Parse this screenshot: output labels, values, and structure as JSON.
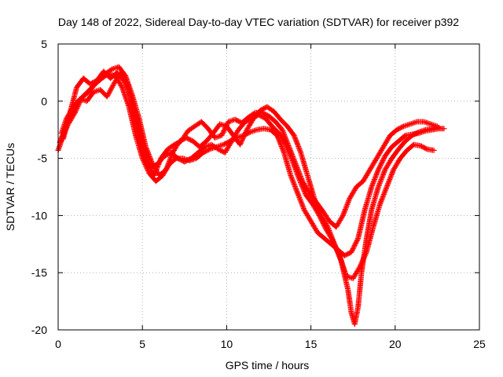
{
  "chart_data": {
    "type": "scatter",
    "title": "Day 148 of 2022, Sidereal Day-to-day VTEC variation (SDTVAR) for receiver p392",
    "xlabel": "GPS time / hours",
    "ylabel": "SDTVAR / TECUs",
    "xlim": [
      0,
      25
    ],
    "ylim": [
      -20,
      5
    ],
    "xticks": [
      0,
      5,
      10,
      15,
      20,
      25
    ],
    "yticks": [
      5,
      0,
      -5,
      -10,
      -15,
      -20
    ],
    "grid": true,
    "marker": "plus",
    "color": "#ff0000",
    "series": [
      {
        "x": [
          0.0,
          0.3,
          0.6,
          1.0,
          1.4,
          1.8,
          2.2,
          2.6,
          3.0,
          3.4,
          3.8,
          4.2,
          4.6,
          5.0,
          5.4,
          5.8,
          6.2,
          6.6,
          7.0,
          7.4,
          7.8,
          8.2,
          8.6,
          9.0,
          9.4,
          9.8,
          10.2,
          10.6,
          11.0,
          11.4,
          11.8,
          12.2,
          12.6,
          13.0,
          13.4,
          13.8,
          14.2,
          14.6,
          15.0,
          15.4,
          15.8,
          16.2,
          16.6,
          17.0,
          17.4,
          17.8,
          18.2,
          18.6,
          19.0,
          19.4,
          19.8,
          20.2,
          20.6,
          21.0,
          21.4,
          21.8,
          22.2,
          22.6,
          22.9
        ],
        "y": [
          -4.3,
          -3.0,
          -2.0,
          -1.0,
          0.3,
          0.8,
          1.5,
          2.0,
          2.4,
          2.2,
          1.2,
          -0.5,
          -3.0,
          -5.0,
          -6.3,
          -7.0,
          -6.5,
          -5.5,
          -5.0,
          -5.0,
          -5.2,
          -5.0,
          -4.5,
          -4.2,
          -4.0,
          -3.8,
          -3.5,
          -3.2,
          -3.0,
          -2.7,
          -2.5,
          -2.4,
          -2.5,
          -3.0,
          -4.5,
          -6.5,
          -8.0,
          -9.5,
          -10.5,
          -11.5,
          -12.0,
          -12.5,
          -13.0,
          -13.5,
          -13.2,
          -12.0,
          -9.5,
          -7.5,
          -6.0,
          -4.8,
          -4.0,
          -3.5,
          -3.0,
          -2.9,
          -2.8,
          -2.6,
          -2.5,
          -2.4,
          -2.4
        ]
      },
      {
        "x": [
          0.1,
          0.4,
          0.8,
          1.2,
          1.6,
          2.0,
          2.4,
          2.8,
          3.2,
          3.6,
          4.0,
          4.4,
          4.8,
          5.2,
          5.6,
          6.0,
          6.4,
          6.8,
          7.2,
          7.6,
          8.0,
          8.4,
          8.8,
          9.2,
          9.6,
          10.0,
          10.4,
          10.8,
          11.2,
          11.6,
          12.0,
          12.4,
          12.8,
          13.2,
          13.6,
          14.0,
          14.4,
          14.8,
          15.2,
          15.6,
          16.0,
          16.4,
          16.8,
          17.2,
          17.4,
          17.6,
          17.8,
          18.0,
          18.3,
          18.6,
          19.0,
          19.4,
          19.8,
          20.2,
          20.6,
          21.0,
          21.4,
          21.8,
          22.2,
          22.6
        ],
        "y": [
          -3.6,
          -2.4,
          -1.2,
          0.0,
          0.6,
          1.2,
          1.8,
          2.4,
          2.8,
          3.0,
          2.2,
          0.5,
          -1.5,
          -4.0,
          -5.5,
          -6.5,
          -6.0,
          -4.5,
          -3.5,
          -3.2,
          -3.5,
          -4.0,
          -3.5,
          -2.8,
          -2.0,
          -2.2,
          -3.0,
          -3.8,
          -2.5,
          -1.5,
          -0.8,
          -0.5,
          -0.9,
          -1.6,
          -2.2,
          -3.0,
          -4.5,
          -6.5,
          -8.5,
          -10.0,
          -11.0,
          -12.5,
          -14.0,
          -16.5,
          -18.5,
          -19.5,
          -18.0,
          -15.0,
          -12.0,
          -9.5,
          -7.5,
          -6.0,
          -5.0,
          -4.2,
          -3.5,
          -3.0,
          -2.7,
          -2.5,
          -2.4,
          -2.3
        ]
      },
      {
        "x": [
          0.2,
          0.5,
          0.9,
          1.3,
          1.7,
          2.1,
          2.5,
          2.9,
          3.3,
          3.7,
          4.1,
          4.5,
          4.9,
          5.3,
          5.7,
          6.1,
          6.5,
          6.9,
          7.3,
          7.7,
          8.1,
          8.5,
          8.9,
          9.3,
          9.7,
          10.1,
          10.5,
          10.9,
          11.3,
          11.7,
          12.1,
          12.5,
          12.9,
          13.3,
          13.7,
          14.1,
          14.5,
          14.9,
          15.3,
          15.7,
          16.1,
          16.5,
          16.9,
          17.3,
          17.7,
          18.1,
          18.5,
          18.9,
          19.3,
          19.7,
          20.1,
          20.5,
          20.9,
          21.3,
          21.7,
          22.1,
          22.5
        ],
        "y": [
          -2.8,
          -1.5,
          -0.5,
          0.2,
          0.0,
          0.8,
          1.0,
          0.4,
          1.5,
          2.5,
          1.5,
          -1.0,
          -3.5,
          -5.5,
          -6.5,
          -5.0,
          -4.2,
          -3.8,
          -3.5,
          -2.6,
          -2.2,
          -1.8,
          -2.4,
          -3.2,
          -3.0,
          -1.8,
          -1.6,
          -1.9,
          -1.4,
          -1.0,
          -1.0,
          -1.3,
          -1.8,
          -2.5,
          -4.0,
          -5.5,
          -7.0,
          -8.0,
          -8.8,
          -9.6,
          -10.5,
          -11.0,
          -10.0,
          -8.5,
          -7.5,
          -7.0,
          -6.0,
          -5.0,
          -4.0,
          -3.0,
          -2.5,
          -2.2,
          -2.0,
          -1.8,
          -1.8,
          -2.0,
          -2.2
        ]
      },
      {
        "x": [
          0.3,
          0.7,
          1.1,
          1.5,
          1.9,
          2.3,
          2.7,
          3.1,
          3.5,
          3.9,
          4.3,
          4.7,
          5.1,
          5.5,
          5.9,
          6.3,
          6.7,
          7.1,
          7.5,
          7.9,
          8.3,
          8.7,
          9.1,
          9.5,
          9.9,
          10.3,
          10.7,
          11.1,
          11.5,
          11.9,
          12.3,
          12.7,
          13.1,
          13.5,
          13.9,
          14.3,
          14.7,
          15.1,
          15.5,
          15.9,
          16.3,
          16.7,
          17.1,
          17.5,
          17.9,
          18.3,
          18.7,
          19.1,
          19.5,
          19.9,
          20.3,
          20.7,
          21.1,
          21.5,
          21.9,
          22.3
        ],
        "y": [
          -3.3,
          -1.0,
          1.2,
          2.0,
          1.5,
          1.8,
          2.6,
          2.0,
          2.5,
          1.8,
          0.5,
          -2.0,
          -4.5,
          -5.8,
          -5.5,
          -4.8,
          -4.5,
          -5.0,
          -5.3,
          -5.0,
          -4.5,
          -4.0,
          -3.8,
          -4.2,
          -4.5,
          -3.5,
          -2.5,
          -1.8,
          -1.5,
          -1.2,
          -1.5,
          -2.2,
          -2.8,
          -3.8,
          -5.2,
          -6.8,
          -8.2,
          -9.0,
          -10.0,
          -11.2,
          -12.2,
          -13.5,
          -15.3,
          -15.5,
          -14.5,
          -13.2,
          -11.0,
          -9.0,
          -7.5,
          -6.0,
          -5.0,
          -4.3,
          -3.8,
          -3.9,
          -4.2,
          -4.3
        ]
      }
    ]
  }
}
